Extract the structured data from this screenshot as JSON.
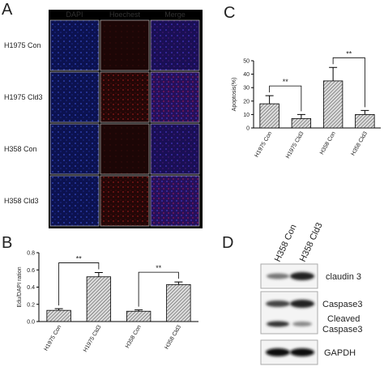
{
  "panels": {
    "a": "A",
    "b": "B",
    "c": "C",
    "d": "D"
  },
  "microscopy": {
    "columns": [
      "DAPI",
      "Hoechest",
      "Merge"
    ],
    "rows": [
      "H1975 Con",
      "H1975 Cld3",
      "H358 Con",
      "H358 Cld3"
    ]
  },
  "chart_data": [
    {
      "type": "bar",
      "y_label": "Edu/DAPI ration",
      "categories": [
        "H1975 Con",
        "H1975 Cld3",
        "H358 Con",
        "H358 Cld3"
      ],
      "values": [
        0.13,
        0.52,
        0.12,
        0.43
      ],
      "errors": [
        0.02,
        0.05,
        0.015,
        0.03
      ],
      "color": "#555555",
      "ylim": [
        0,
        0.8
      ],
      "yticks": [
        {
          "value": 0,
          "label": "0.0"
        },
        {
          "value": 0.2,
          "label": "0.2"
        },
        {
          "value": 0.4,
          "label": "0.4"
        },
        {
          "value": 0.6,
          "label": "0.6"
        },
        {
          "value": 0.8,
          "label": "0.8"
        }
      ],
      "annotations": [
        "**",
        "**"
      ]
    },
    {
      "type": "bar",
      "y_label": "Apoptosis(%)",
      "categories": [
        "H1975 Con",
        "H1975 Cld3",
        "H358 Con",
        "H358 Cld3"
      ],
      "values": [
        18,
        7,
        35,
        10
      ],
      "errors": [
        6,
        3,
        10,
        3
      ],
      "color": "#555555",
      "ylim": [
        0,
        50
      ],
      "yticks": [
        0,
        10,
        20,
        30,
        40,
        50
      ],
      "annotations": [
        "**",
        "**"
      ]
    }
  ],
  "blot": {
    "columns": [
      "H358 Con",
      "H358 Cld3"
    ],
    "bands": [
      "claudin 3",
      "Caspase3",
      [
        "Cleaved",
        "Caspase3"
      ],
      "GAPDH"
    ]
  }
}
